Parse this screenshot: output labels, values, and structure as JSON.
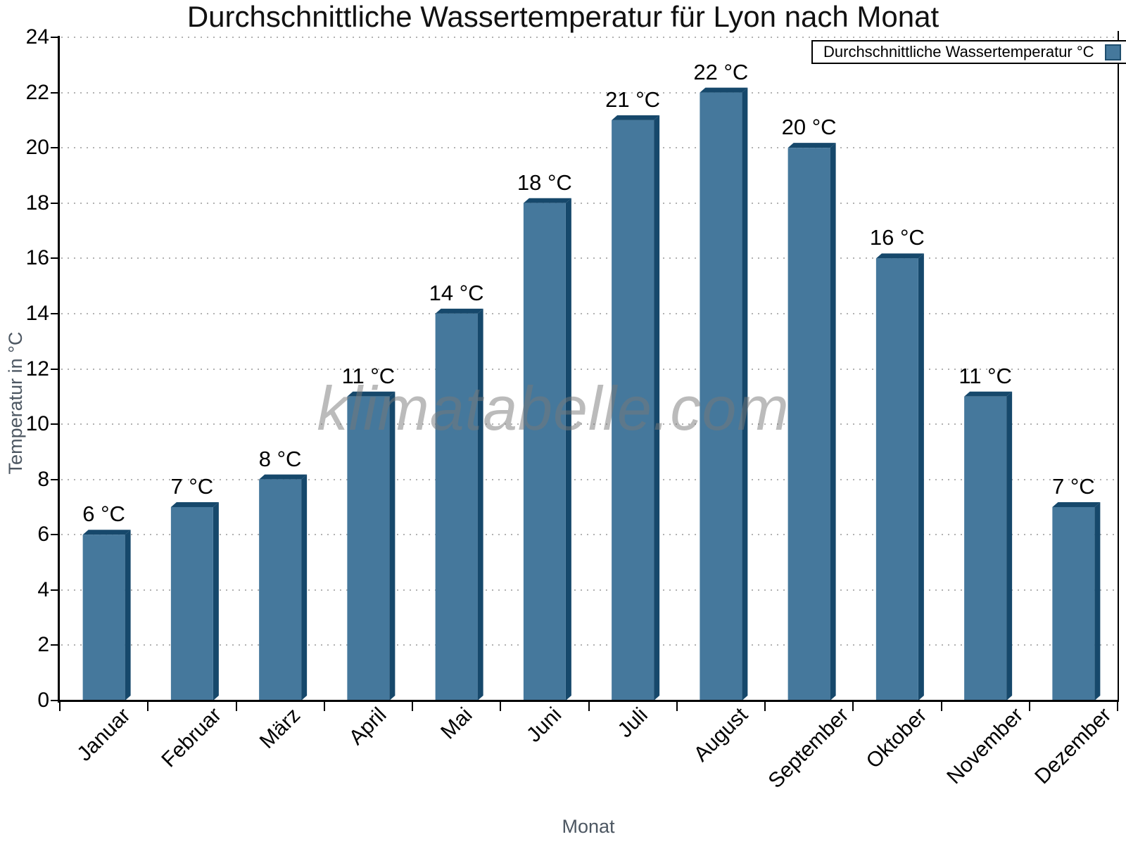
{
  "chart_data": {
    "type": "bar",
    "title": "Durchschnittliche Wassertemperatur für Lyon nach Monat",
    "categories": [
      "Januar",
      "Februar",
      "März",
      "April",
      "Mai",
      "Juni",
      "Juli",
      "August",
      "September",
      "Oktober",
      "November",
      "Dezember"
    ],
    "values": [
      6,
      7,
      8,
      11,
      14,
      18,
      21,
      22,
      20,
      16,
      11,
      7
    ],
    "unit": "°C",
    "xlabel": "Monat",
    "ylabel": "Temperatur in °C",
    "ylim": [
      0,
      24
    ],
    "ytick_step": 2,
    "yticks": [
      0,
      2,
      4,
      6,
      8,
      10,
      12,
      14,
      16,
      18,
      20,
      22,
      24
    ],
    "grid": "horizontal-dotted",
    "bar_style": "3d-extruded",
    "legend": {
      "label": "Durchschnittliche Wassertemperatur °C",
      "position": "top-right"
    },
    "watermark": "klimatabelle.com",
    "colors": {
      "bar_face": "#45789C",
      "bar_shade": "#16486B",
      "gridline": "#b2b2b2",
      "axis": "#000000",
      "axis_title": "#4d5762",
      "value_label": "#000000",
      "watermark": "rgba(120,120,120,0.5)"
    }
  }
}
